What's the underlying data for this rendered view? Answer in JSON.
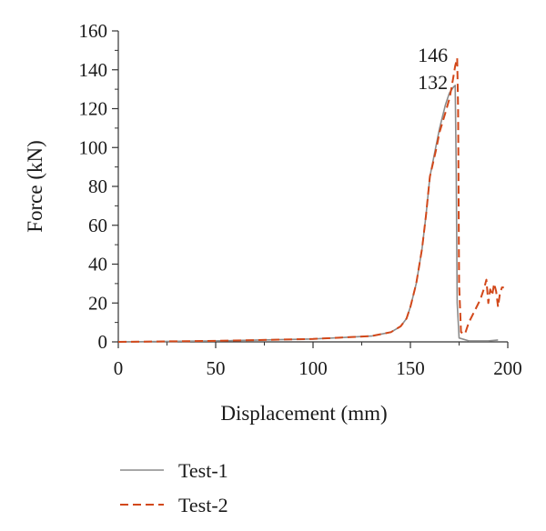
{
  "chart_data": {
    "type": "line",
    "title": "",
    "xlabel": "Displacement (mm)",
    "ylabel": "Force (kN)",
    "xlim": [
      0,
      200
    ],
    "ylim": [
      0,
      160
    ],
    "xticks": [
      0,
      50,
      100,
      150,
      200
    ],
    "yticks": [
      0,
      20,
      40,
      60,
      80,
      100,
      120,
      140,
      160
    ],
    "grid": false,
    "legend_position": "bottom-left",
    "series": [
      {
        "name": "Test-1",
        "color": "#8c8c8c",
        "style": "solid",
        "x": [
          0,
          50,
          100,
          130,
          140,
          145,
          148,
          150,
          153,
          156,
          158,
          160,
          163,
          165,
          168,
          170,
          172,
          173,
          173.5,
          174,
          175,
          180,
          190,
          195
        ],
        "y": [
          0,
          0.5,
          1.5,
          3,
          5,
          8,
          12,
          18,
          30,
          48,
          65,
          85,
          100,
          110,
          122,
          128,
          131,
          132,
          90,
          20,
          2,
          0.5,
          0.5,
          1
        ]
      },
      {
        "name": "Test-2",
        "color": "#d2481a",
        "style": "dashed",
        "x": [
          0,
          50,
          100,
          130,
          140,
          145,
          148,
          150,
          153,
          156,
          158,
          160,
          163,
          165,
          168,
          170,
          171,
          172,
          173,
          174,
          174.5,
          175,
          176,
          178,
          180,
          182,
          184,
          186,
          188,
          189,
          190,
          191,
          192,
          193,
          194,
          195,
          196,
          197,
          198
        ],
        "y": [
          0,
          0.5,
          1.5,
          3,
          5,
          8,
          12,
          18,
          30,
          48,
          65,
          85,
          98,
          108,
          118,
          125,
          130,
          136,
          142,
          146,
          120,
          30,
          5,
          4,
          10,
          14,
          18,
          22,
          28,
          32,
          20,
          27,
          24,
          30,
          26,
          18,
          25,
          28,
          28
        ]
      }
    ],
    "annotations": [
      {
        "text": "146",
        "x": 172,
        "y": 146
      },
      {
        "text": "132",
        "x": 172,
        "y": 132
      }
    ]
  }
}
